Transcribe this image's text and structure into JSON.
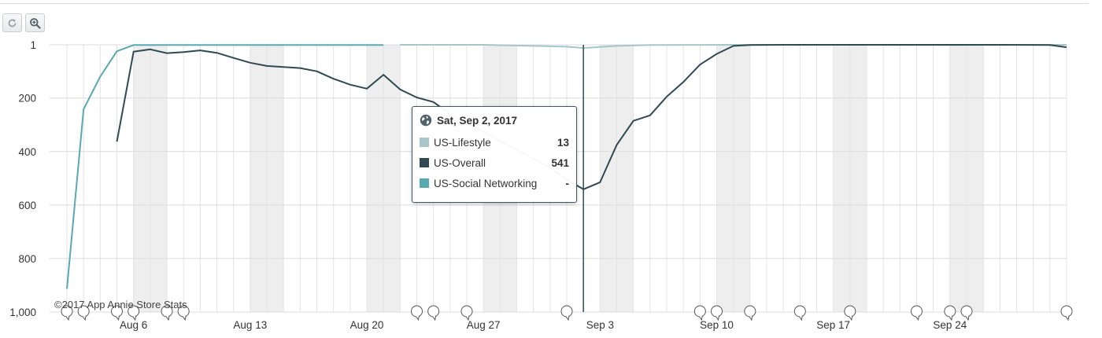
{
  "toolbar": {
    "reset_icon": "reset-zoom-icon",
    "zoom_icon": "zoom-in-icon"
  },
  "watermark": "©2017 App Annie Store Stats",
  "colors": {
    "lifestyle": "#a6c6c9",
    "overall": "#2f4a52",
    "social": "#58aab2",
    "weekend_band": "#eeeeee",
    "grid": "#e4e4e4",
    "marker": "#2f4a52"
  },
  "tooltip": {
    "icon": "globe-icon",
    "date": "Sat, Sep 2, 2017",
    "rows": [
      {
        "label": "US-Lifestyle",
        "value": "13",
        "color": "#a6c6c9"
      },
      {
        "label": "US-Overall",
        "value": "541",
        "color": "#2f4a52"
      },
      {
        "label": "US-Social Networking",
        "value": "-",
        "color": "#58aab2"
      }
    ]
  },
  "chart_data": {
    "type": "line",
    "title": "",
    "xlabel": "",
    "ylabel": "",
    "y_reversed": true,
    "ylim": [
      1,
      1000
    ],
    "y_ticks": [
      "1",
      "200",
      "400",
      "600",
      "800",
      "1,000"
    ],
    "y_tick_values": [
      1,
      200,
      400,
      600,
      800,
      1000
    ],
    "x_tick_labels": [
      "Aug 6",
      "Aug 13",
      "Aug 20",
      "Aug 27",
      "Sep 3",
      "Sep 10",
      "Sep 17",
      "Sep 24"
    ],
    "x_tick_days": [
      4,
      11,
      18,
      25,
      32,
      39,
      46,
      53
    ],
    "x_range_days": [
      0,
      60
    ],
    "weekend_days": [
      [
        4,
        6
      ],
      [
        11,
        13
      ],
      [
        18,
        20
      ],
      [
        25,
        27
      ],
      [
        32,
        34
      ],
      [
        39,
        41
      ],
      [
        46,
        48
      ],
      [
        53,
        55
      ]
    ],
    "hover_day": 31,
    "grid": true,
    "event_marker_days": [
      0,
      1,
      3,
      4,
      6,
      7,
      21,
      22,
      24,
      30,
      38,
      39,
      41,
      44,
      47,
      51,
      53,
      54,
      60
    ],
    "series": [
      {
        "name": "US-Social Networking",
        "points": [
          [
            0,
            913
          ],
          [
            1,
            242
          ],
          [
            2,
            120
          ],
          [
            3,
            25
          ],
          [
            4,
            2
          ],
          [
            6,
            2
          ],
          [
            10,
            2
          ],
          [
            15,
            2
          ],
          [
            19,
            2
          ]
        ]
      },
      {
        "name": "US-Lifestyle",
        "points": [
          [
            20,
            1
          ],
          [
            25,
            1
          ],
          [
            28,
            5
          ],
          [
            30,
            8
          ],
          [
            31,
            13
          ],
          [
            33,
            5
          ],
          [
            35,
            2
          ],
          [
            40,
            1
          ],
          [
            43,
            1
          ],
          [
            47,
            1
          ],
          [
            53,
            2
          ],
          [
            57,
            1
          ],
          [
            60,
            1
          ]
        ]
      },
      {
        "name": "US-Overall",
        "points": [
          [
            3,
            363
          ],
          [
            4,
            27
          ],
          [
            5,
            18
          ],
          [
            6,
            32
          ],
          [
            7,
            28
          ],
          [
            8,
            22
          ],
          [
            9,
            31
          ],
          [
            10,
            50
          ],
          [
            11,
            68
          ],
          [
            12,
            80
          ],
          [
            13,
            84
          ],
          [
            14,
            88
          ],
          [
            15,
            100
          ],
          [
            16,
            128
          ],
          [
            17,
            150
          ],
          [
            18,
            165
          ],
          [
            19,
            113
          ],
          [
            20,
            168
          ],
          [
            21,
            198
          ],
          [
            22,
            215
          ],
          [
            23,
            260
          ],
          [
            29,
            460
          ],
          [
            30,
            505
          ],
          [
            31,
            541
          ],
          [
            32,
            515
          ],
          [
            33,
            375
          ],
          [
            34,
            285
          ],
          [
            35,
            265
          ],
          [
            36,
            195
          ],
          [
            37,
            140
          ],
          [
            38,
            75
          ],
          [
            39,
            35
          ],
          [
            40,
            5
          ],
          [
            41,
            2
          ],
          [
            43,
            1
          ],
          [
            50,
            1
          ],
          [
            56,
            1
          ],
          [
            59,
            2
          ],
          [
            60,
            10
          ]
        ]
      }
    ]
  }
}
